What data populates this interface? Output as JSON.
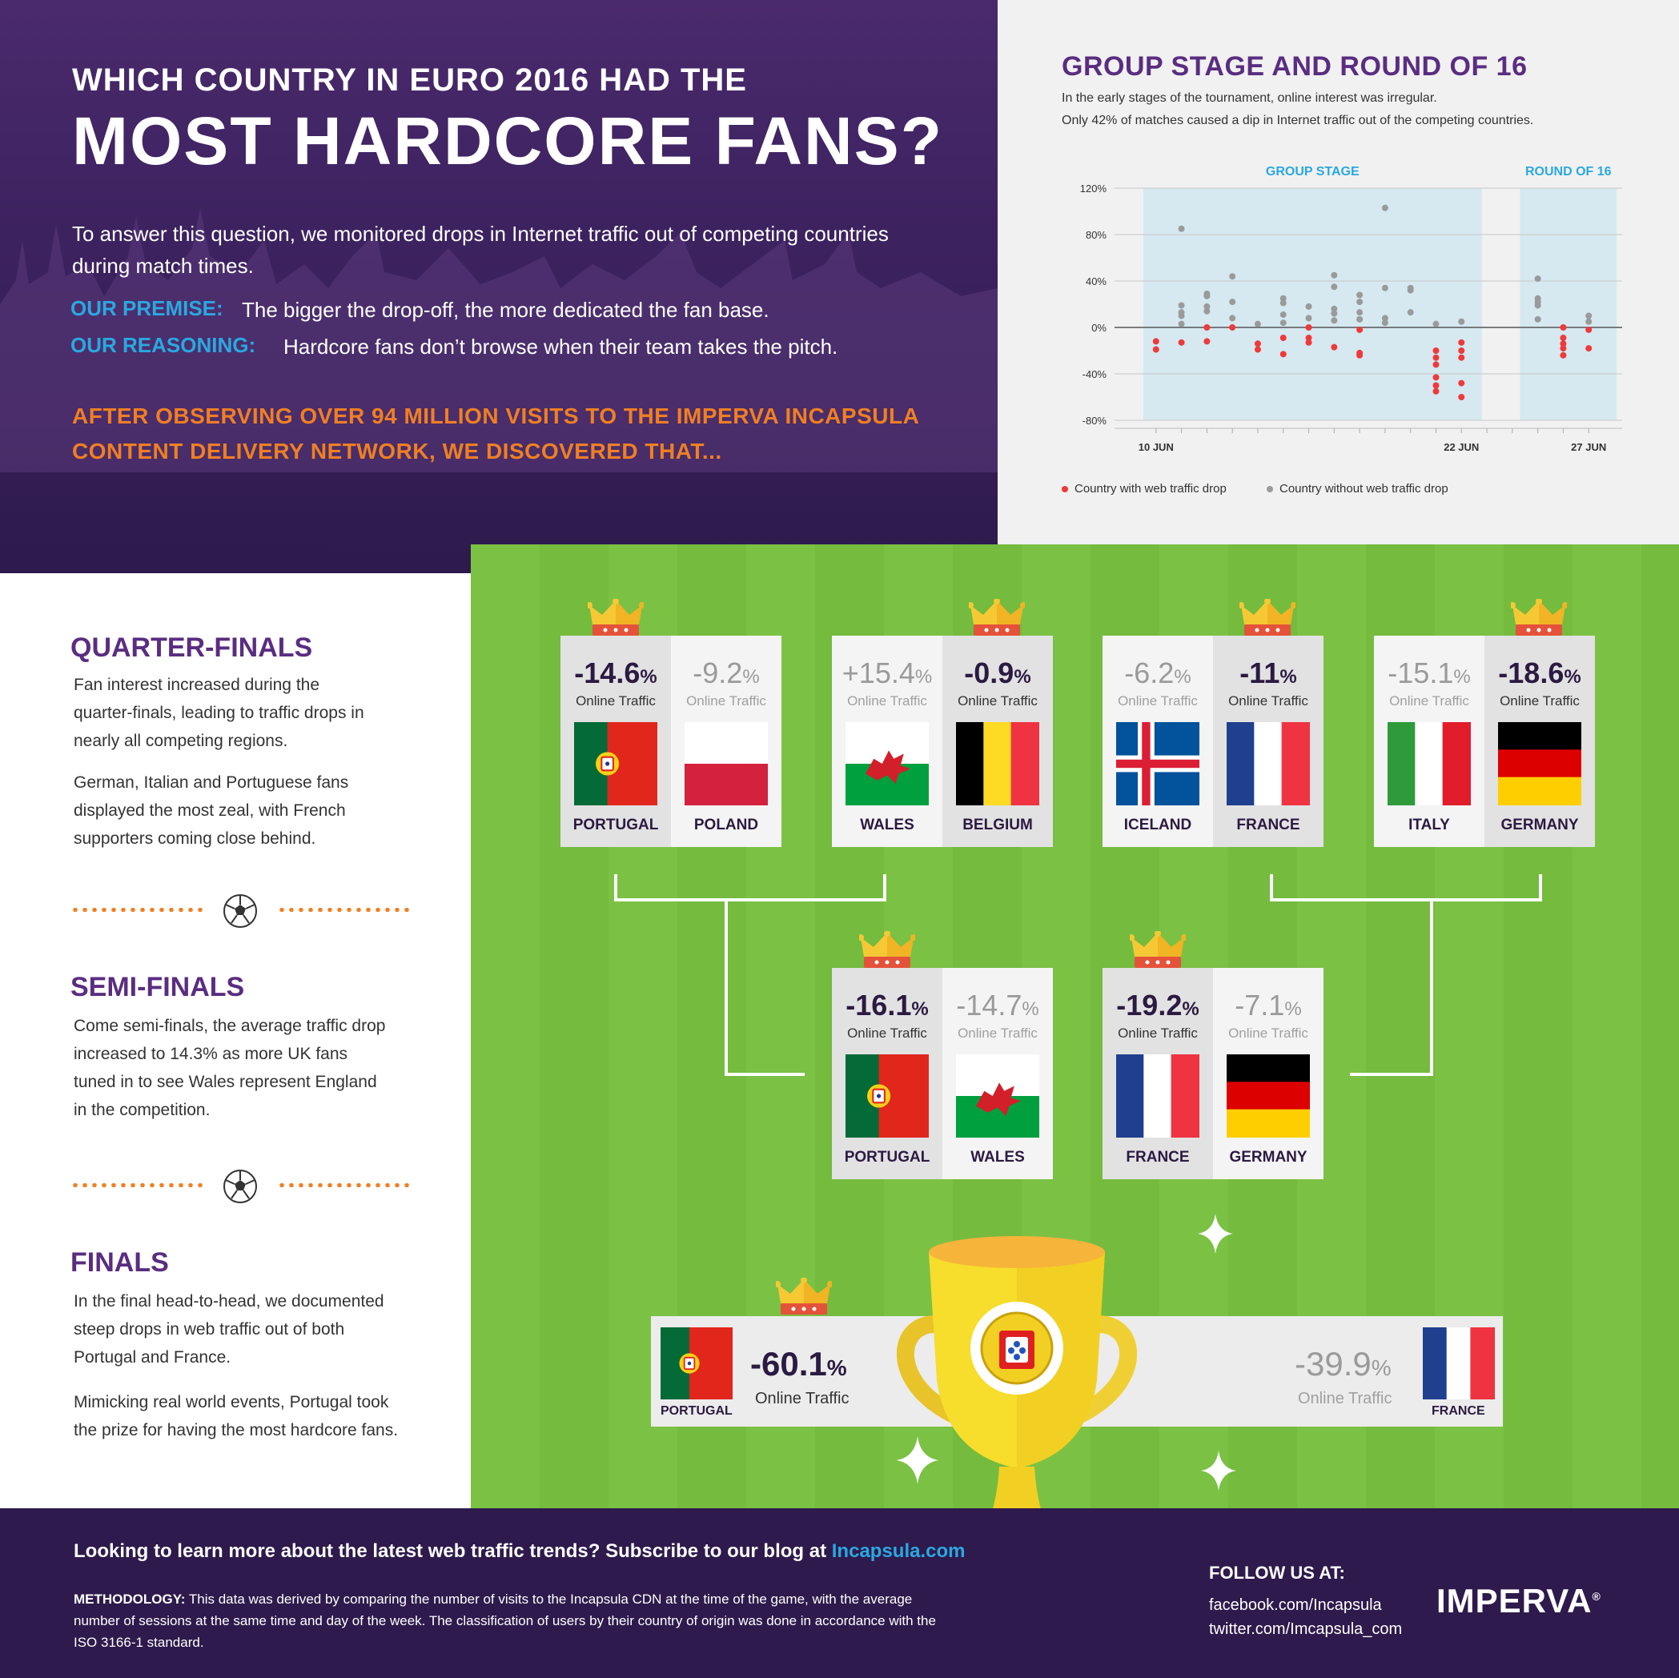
{
  "header": {
    "title_small": "WHICH COUNTRY IN EURO 2016 HAD THE",
    "title_big": "MOST HARDCORE FANS?",
    "intro": "To answer this question, we monitored drops in Internet traffic out of competing countries during match times.",
    "premise_label": "OUR PREMISE:",
    "premise_text": "The bigger the drop-off, the more dedicated the fan base.",
    "reasoning_label": "OUR REASONING:",
    "reasoning_text": "Hardcore fans don’t browse when their team takes the pitch.",
    "conclusion_line1": "AFTER OBSERVING OVER 94 MILLION VISITS TO THE IMPERVA INCAPSULA",
    "conclusion_line2": "CONTENT DELIVERY NETWORK, WE DISCOVERED THAT..."
  },
  "chart_panel": {
    "title": "GROUP STAGE AND ROUND OF 16",
    "subtitle_line1": "In the early stages of the tournament, online interest was irregular.",
    "subtitle_line2": "Only 42% of matches caused a dip in Internet traffic out of the competing countries.",
    "legend_drop": "Country with web traffic drop",
    "legend_no_drop": "Country without web traffic drop"
  },
  "chart_data": {
    "type": "scatter",
    "title": "GROUP STAGE AND ROUND OF 16",
    "y_tick_labels": [
      "120%",
      "80%",
      "40%",
      "0%",
      "-40%",
      "-80%"
    ],
    "ylim": [
      -80,
      120
    ],
    "x_tick_labels": [
      "10 JUN",
      "22 JUN",
      "27 JUN"
    ],
    "x_ticks": [
      "2016-06-10",
      "2016-06-22",
      "2016-06-27"
    ],
    "xlim": [
      "2016-06-09",
      "2016-06-28"
    ],
    "regions": [
      {
        "label": "GROUP STAGE",
        "start": "2016-06-09.5",
        "end": "2016-06-22.8"
      },
      {
        "label": "ROUND OF 16",
        "start": "2016-06-24.3",
        "end": "2016-06-28.1"
      }
    ],
    "colors": {
      "drop": "#ee3a3a",
      "no_drop": "#9a9a9a",
      "region": "#d6e8f0",
      "region_label": "#2aa8e0"
    },
    "series": [
      {
        "name": "Country with web traffic drop",
        "points": [
          [
            "2016-06-10",
            -12
          ],
          [
            "2016-06-10",
            -19
          ],
          [
            "2016-06-11",
            -13
          ],
          [
            "2016-06-12",
            0
          ],
          [
            "2016-06-12",
            -12
          ],
          [
            "2016-06-13",
            0
          ],
          [
            "2016-06-14",
            -14
          ],
          [
            "2016-06-14",
            -19
          ],
          [
            "2016-06-15",
            -9
          ],
          [
            "2016-06-15",
            -23
          ],
          [
            "2016-06-16",
            0
          ],
          [
            "2016-06-16",
            -9
          ],
          [
            "2016-06-16",
            -13
          ],
          [
            "2016-06-17",
            -17
          ],
          [
            "2016-06-18",
            -2
          ],
          [
            "2016-06-18",
            -22
          ],
          [
            "2016-06-18",
            -24
          ],
          [
            "2016-06-21",
            -20
          ],
          [
            "2016-06-21",
            -26
          ],
          [
            "2016-06-21",
            -32
          ],
          [
            "2016-06-21",
            -43
          ],
          [
            "2016-06-21",
            -50
          ],
          [
            "2016-06-21",
            -55
          ],
          [
            "2016-06-22",
            -13
          ],
          [
            "2016-06-22",
            -20
          ],
          [
            "2016-06-22",
            -26
          ],
          [
            "2016-06-22",
            -48
          ],
          [
            "2016-06-22",
            -60
          ],
          [
            "2016-06-26",
            0
          ],
          [
            "2016-06-26",
            -9
          ],
          [
            "2016-06-26",
            -14
          ],
          [
            "2016-06-26",
            -18
          ],
          [
            "2016-06-26",
            -24
          ],
          [
            "2016-06-27",
            -2
          ],
          [
            "2016-06-27",
            -18
          ]
        ]
      },
      {
        "name": "Country without web traffic drop",
        "points": [
          [
            "2016-06-11",
            85
          ],
          [
            "2016-06-11",
            19
          ],
          [
            "2016-06-11",
            13
          ],
          [
            "2016-06-11",
            10
          ],
          [
            "2016-06-11",
            3
          ],
          [
            "2016-06-12",
            29
          ],
          [
            "2016-06-12",
            27
          ],
          [
            "2016-06-12",
            18
          ],
          [
            "2016-06-12",
            14
          ],
          [
            "2016-06-13",
            44
          ],
          [
            "2016-06-13",
            22
          ],
          [
            "2016-06-13",
            8
          ],
          [
            "2016-06-14",
            3
          ],
          [
            "2016-06-15",
            25
          ],
          [
            "2016-06-15",
            21
          ],
          [
            "2016-06-15",
            11
          ],
          [
            "2016-06-15",
            4
          ],
          [
            "2016-06-16",
            18
          ],
          [
            "2016-06-16",
            8
          ],
          [
            "2016-06-17",
            45
          ],
          [
            "2016-06-17",
            35
          ],
          [
            "2016-06-17",
            16
          ],
          [
            "2016-06-17",
            12
          ],
          [
            "2016-06-17",
            6
          ],
          [
            "2016-06-18",
            28
          ],
          [
            "2016-06-18",
            22
          ],
          [
            "2016-06-18",
            13
          ],
          [
            "2016-06-18",
            7
          ],
          [
            "2016-06-19",
            103
          ],
          [
            "2016-06-19",
            34
          ],
          [
            "2016-06-19",
            8
          ],
          [
            "2016-06-19",
            4
          ],
          [
            "2016-06-20",
            34
          ],
          [
            "2016-06-20",
            32
          ],
          [
            "2016-06-20",
            13
          ],
          [
            "2016-06-21",
            3
          ],
          [
            "2016-06-22",
            5
          ],
          [
            "2016-06-25",
            42
          ],
          [
            "2016-06-25",
            25
          ],
          [
            "2016-06-25",
            22
          ],
          [
            "2016-06-25",
            19
          ],
          [
            "2016-06-25",
            7
          ],
          [
            "2016-06-27",
            10
          ],
          [
            "2016-06-27",
            5
          ]
        ]
      }
    ]
  },
  "left": {
    "qf_title": "QUARTER-FINALS",
    "qf_p1_l1": "Fan interest increased during the",
    "qf_p1_l2": "quarter-finals, leading to traffic drops in",
    "qf_p1_l3": "nearly all competing regions.",
    "qf_p2_l1": "German, Italian and Portuguese fans",
    "qf_p2_l2": "displayed the most zeal, with French",
    "qf_p2_l3": "supporters coming close behind.",
    "sf_title": "SEMI-FINALS",
    "sf_p1_l1": "Come semi-finals, the average traffic drop",
    "sf_p1_l2": "increased to 14.3% as more UK fans",
    "sf_p1_l3": "tuned in to see Wales represent England",
    "sf_p1_l4": "in the competition.",
    "f_title": "FINALS",
    "f_p1_l1": "In the final head-to-head, we documented",
    "f_p1_l2": "steep drops in web traffic out of both",
    "f_p1_l3": "Portugal and France.",
    "f_p2_l1": "Mimicking real world events, Portugal took",
    "f_p2_l2": "the prize for having the most hardcore fans."
  },
  "online_traffic_label": "Online Traffic",
  "pct_sign": "%",
  "quarter_finals": [
    {
      "a": {
        "name": "PORTUGAL",
        "value": "-14.6",
        "winner": true,
        "flag": "portugal"
      },
      "b": {
        "name": "POLAND",
        "value": "-9.2",
        "winner": false,
        "flag": "poland"
      }
    },
    {
      "a": {
        "name": "WALES",
        "value": "+15.4",
        "winner": false,
        "flag": "wales"
      },
      "b": {
        "name": "BELGIUM",
        "value": "-0.9",
        "winner": true,
        "flag": "belgium"
      }
    },
    {
      "a": {
        "name": "ICELAND",
        "value": "-6.2",
        "winner": false,
        "flag": "iceland"
      },
      "b": {
        "name": "FRANCE",
        "value": "-11",
        "winner": true,
        "flag": "france"
      }
    },
    {
      "a": {
        "name": "ITALY",
        "value": "-15.1",
        "winner": false,
        "flag": "italy"
      },
      "b": {
        "name": "GERMANY",
        "value": "-18.6",
        "winner": true,
        "flag": "germany"
      }
    }
  ],
  "semi_finals": [
    {
      "a": {
        "name": "PORTUGAL",
        "value": "-16.1",
        "winner": true,
        "flag": "portugal"
      },
      "b": {
        "name": "WALES",
        "value": "-14.7",
        "winner": false,
        "flag": "wales"
      }
    },
    {
      "a": {
        "name": "FRANCE",
        "value": "-19.2",
        "winner": true,
        "flag": "france"
      },
      "b": {
        "name": "GERMANY",
        "value": "-7.1",
        "winner": false,
        "flag": "germany"
      }
    }
  ],
  "final": {
    "a": {
      "name": "PORTUGAL",
      "value": "-60.1",
      "winner": true
    },
    "b": {
      "name": "FRANCE",
      "value": "-39.9",
      "winner": false
    }
  },
  "footer": {
    "cta": "Looking to learn more about the latest web traffic trends? Subscribe to our blog at",
    "cta_link": "Incapsula.com",
    "methodology_label": "METHODOLOGY:",
    "methodology_text": "This data was derived by comparing the number of visits to the Incapsula CDN at the time of the game, with the average number of sessions at the same time and day of the week. The classification of users by their country of origin was done in accordance with the ISO 3166-1 standard.",
    "follow_label": "FOLLOW US AT:",
    "facebook": "facebook.com/Incapsula",
    "twitter": "twitter.com/Imcapsula_com",
    "logo": "IMPERVA"
  }
}
